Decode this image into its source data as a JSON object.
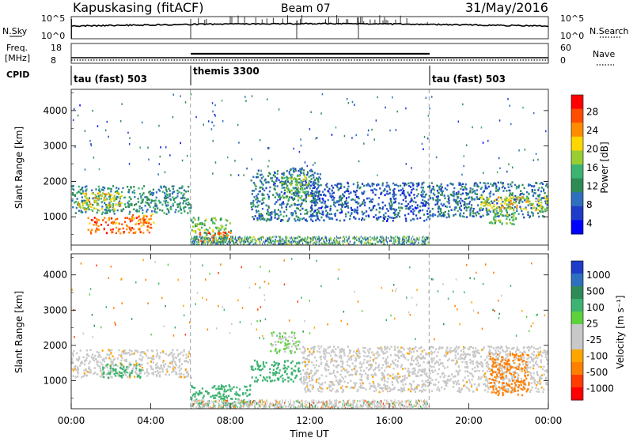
{
  "header": {
    "station": "Kapuskasing (fitACF)",
    "beam": "Beam 07",
    "date": "31/May/2016"
  },
  "noise_panel": {
    "left_label": "N.Sky",
    "left_ticks": [
      "10^5",
      "10^0"
    ],
    "right_label": "N.Search",
    "right_ticks": [
      "10^5",
      "10^0"
    ]
  },
  "freq_panel": {
    "left_label_line1": "Freq.",
    "left_label_line2": "[MHz]",
    "left_ticks": [
      "18",
      "8"
    ],
    "right_label": "Nave",
    "right_ticks": [
      "60",
      "0"
    ]
  },
  "cpid_panel": {
    "label": "CPID",
    "segments": [
      {
        "label": "tau (fast) 503",
        "start_hour": 0,
        "end_hour": 6
      },
      {
        "label": "themis 3300",
        "start_hour": 6,
        "end_hour": 18
      },
      {
        "label": "tau (fast) 503",
        "start_hour": 18,
        "end_hour": 24
      }
    ]
  },
  "time_axis": {
    "title": "Time UT",
    "ticks": [
      "00:00",
      "04:00",
      "08:00",
      "12:00",
      "16:00",
      "20:00",
      "00:00"
    ]
  },
  "power_colorbar": {
    "label": "Power [dB]",
    "ticks": [
      "28",
      "24",
      "20",
      "16",
      "12",
      "8",
      "4"
    ],
    "colors": [
      "#ff0000",
      "#ff4d00",
      "#ff8c00",
      "#ffd700",
      "#9acd32",
      "#3cb371",
      "#2e8b57",
      "#2f6fbf",
      "#1e3cc8",
      "#0000ff"
    ]
  },
  "velocity_colorbar": {
    "label": "Velocity [m s⁻¹]",
    "ticks": [
      "1000",
      "500",
      "100",
      "25",
      "-25",
      "-100",
      "-500",
      "-1000"
    ],
    "colors": [
      "#1e3cc8",
      "#2f6fbf",
      "#2e8b57",
      "#3cb371",
      "#5cd23c",
      "#c8c8c8",
      "#c8c8c8",
      "#ffa500",
      "#ff7f00",
      "#ff3c00",
      "#ff0000"
    ]
  },
  "chart_data": [
    {
      "type": "heatmap",
      "title": "",
      "xlabel": "Time UT",
      "ylabel": "Slant Range [km]",
      "xlim": [
        0,
        24
      ],
      "ylim": [
        200,
        4600
      ],
      "yticks": [
        1000,
        2000,
        3000,
        4000
      ],
      "quantity": "Power [dB]",
      "vertical_markers_hour": [
        6,
        18
      ],
      "regions": [
        {
          "t0": 0.0,
          "t1": 6.0,
          "r0": 1100,
          "r1": 1900,
          "value": 12
        },
        {
          "t0": 0.3,
          "t1": 2.5,
          "r0": 1200,
          "r1": 1700,
          "value": 20
        },
        {
          "t0": 0.8,
          "t1": 4.0,
          "r0": 550,
          "r1": 1000,
          "value": 26
        },
        {
          "t0": 3.0,
          "t1": 4.2,
          "r0": 850,
          "r1": 1100,
          "value": 24
        },
        {
          "t0": 6.0,
          "t1": 8.0,
          "r0": 300,
          "r1": 1000,
          "value": 16
        },
        {
          "t0": 6.3,
          "t1": 8.0,
          "r0": 300,
          "r1": 600,
          "value": 26
        },
        {
          "t0": 9.0,
          "t1": 12.5,
          "r0": 900,
          "r1": 2400,
          "value": 10
        },
        {
          "t0": 10.5,
          "t1": 12.0,
          "r0": 1500,
          "r1": 2200,
          "value": 16
        },
        {
          "t0": 12.0,
          "t1": 18.0,
          "r0": 900,
          "r1": 2000,
          "value": 8
        },
        {
          "t0": 18.0,
          "t1": 24.0,
          "r0": 1000,
          "r1": 2000,
          "value": 10
        },
        {
          "t0": 20.5,
          "t1": 24.0,
          "r0": 1200,
          "r1": 1600,
          "value": 20
        },
        {
          "t0": 21.0,
          "t1": 22.5,
          "r0": 800,
          "r1": 1200,
          "value": 16
        }
      ]
    },
    {
      "type": "heatmap",
      "title": "",
      "xlabel": "Time UT",
      "ylabel": "Slant Range [km]",
      "xlim": [
        0,
        24
      ],
      "ylim": [
        200,
        4600
      ],
      "yticks": [
        1000,
        2000,
        3000,
        4000
      ],
      "quantity": "Velocity [m s⁻¹]",
      "vertical_markers_hour": [
        6,
        18
      ],
      "regions": [
        {
          "t0": 0.0,
          "t1": 6.0,
          "r0": 1100,
          "r1": 1900,
          "value": 0
        },
        {
          "t0": 1.5,
          "t1": 3.5,
          "r0": 1100,
          "r1": 1500,
          "value": 150
        },
        {
          "t0": 6.0,
          "t1": 9.0,
          "r0": 300,
          "r1": 900,
          "value": 150
        },
        {
          "t0": 9.0,
          "t1": 11.5,
          "r0": 1000,
          "r1": 1600,
          "value": 200
        },
        {
          "t0": 10.0,
          "t1": 11.5,
          "r0": 1800,
          "r1": 2400,
          "value": 50
        },
        {
          "t0": 11.5,
          "t1": 24.0,
          "r0": 700,
          "r1": 2000,
          "value": 0
        },
        {
          "t0": 21.0,
          "t1": 23.0,
          "r0": 600,
          "r1": 1800,
          "value": -150
        }
      ]
    }
  ]
}
